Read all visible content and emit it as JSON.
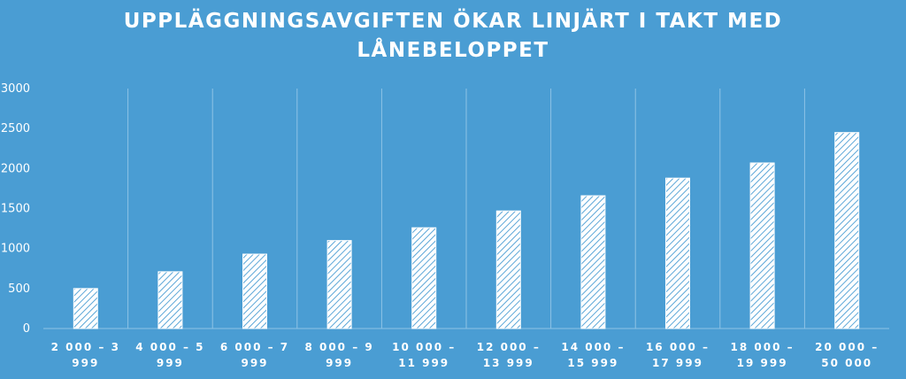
{
  "chart_data": {
    "type": "bar",
    "title_lines": [
      "UPPLÄGGNINGSAVGIFTEN ÖKAR LINJÄRT I TAKT MED",
      "LÅNEBELOPPET"
    ],
    "categories": [
      [
        "2 000 – 3",
        "999"
      ],
      [
        "4 000 – 5",
        "999"
      ],
      [
        "6 000 – 7",
        "999"
      ],
      [
        "8 000 – 9",
        "999"
      ],
      [
        "10 000 –",
        "11 999"
      ],
      [
        "12 000 –",
        "13 999"
      ],
      [
        "14 000 –",
        "15 999"
      ],
      [
        "16 000 –",
        "17 999"
      ],
      [
        "18 000 –",
        "19 999"
      ],
      [
        "20 000 –",
        "50 000"
      ]
    ],
    "values": [
      500,
      710,
      930,
      1100,
      1260,
      1470,
      1660,
      1880,
      2070,
      2450
    ],
    "yticks": [
      "0",
      "500",
      "1000",
      "1500",
      "2000",
      "2500",
      "3000"
    ],
    "ylim": [
      0,
      3000
    ],
    "grid": "vertical",
    "legend": "none",
    "colors": {
      "background": "#4a9dd3",
      "bar_fill": "#ffffff",
      "bar_hatch": "#4a9dd3",
      "grid": "#8ec3e6"
    }
  }
}
